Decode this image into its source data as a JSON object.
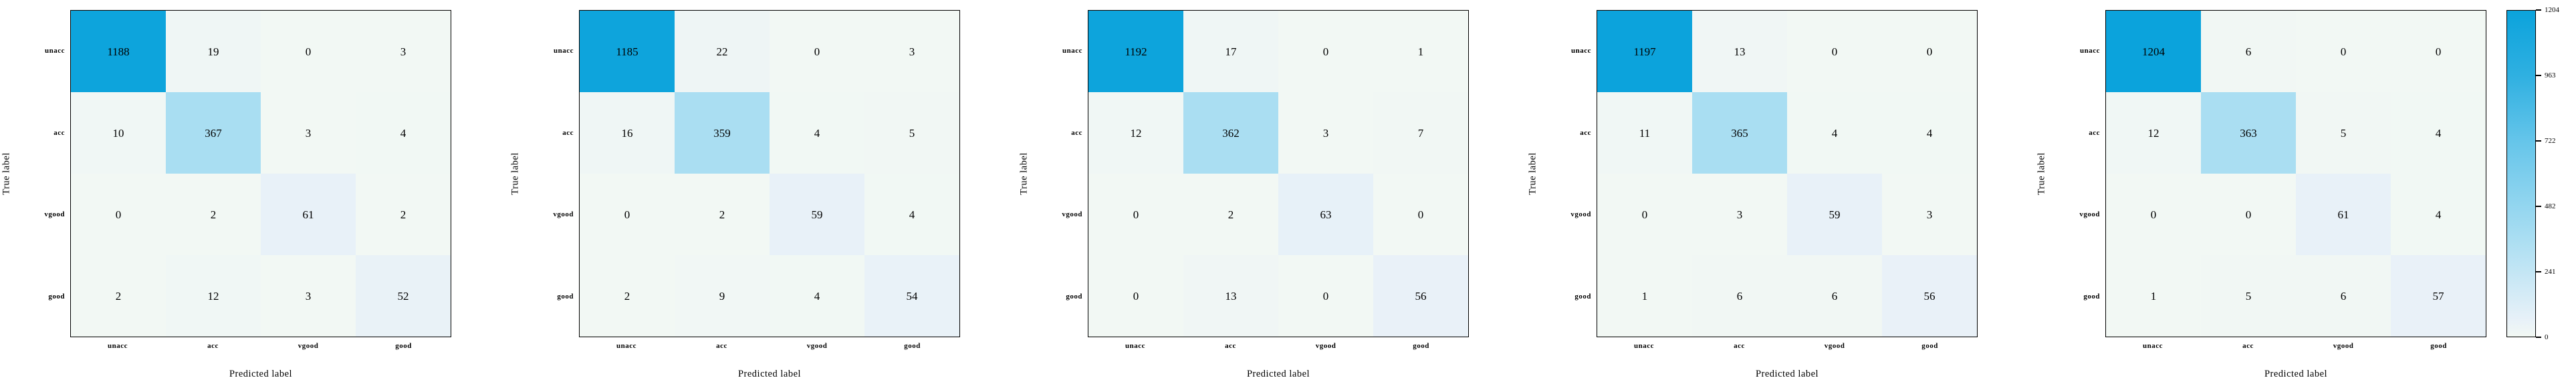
{
  "figure": {
    "xlabel": "Predicted label",
    "ylabel": "True label",
    "classes": [
      "unacc",
      "acc",
      "vgood",
      "good"
    ]
  },
  "chart_data": [
    {
      "type": "heatmap",
      "title": "",
      "x_categories": [
        "unacc",
        "acc",
        "vgood",
        "good"
      ],
      "y_categories": [
        "unacc",
        "acc",
        "vgood",
        "good"
      ],
      "xlabel": "Predicted label",
      "ylabel": "True label",
      "vmin": 0,
      "vmax": 1204,
      "values": [
        [
          1188,
          19,
          0,
          3
        ],
        [
          10,
          367,
          3,
          4
        ],
        [
          0,
          2,
          61,
          2
        ],
        [
          2,
          12,
          3,
          52
        ]
      ]
    },
    {
      "type": "heatmap",
      "title": "",
      "x_categories": [
        "unacc",
        "acc",
        "vgood",
        "good"
      ],
      "y_categories": [
        "unacc",
        "acc",
        "vgood",
        "good"
      ],
      "xlabel": "Predicted label",
      "ylabel": "True label",
      "vmin": 0,
      "vmax": 1204,
      "values": [
        [
          1185,
          22,
          0,
          3
        ],
        [
          16,
          359,
          4,
          5
        ],
        [
          0,
          2,
          59,
          4
        ],
        [
          2,
          9,
          4,
          54
        ]
      ]
    },
    {
      "type": "heatmap",
      "title": "",
      "x_categories": [
        "unacc",
        "acc",
        "vgood",
        "good"
      ],
      "y_categories": [
        "unacc",
        "acc",
        "vgood",
        "good"
      ],
      "xlabel": "Predicted label",
      "ylabel": "True label",
      "vmin": 0,
      "vmax": 1204,
      "values": [
        [
          1192,
          17,
          0,
          1
        ],
        [
          12,
          362,
          3,
          7
        ],
        [
          0,
          2,
          63,
          0
        ],
        [
          0,
          13,
          0,
          56
        ]
      ]
    },
    {
      "type": "heatmap",
      "title": "",
      "x_categories": [
        "unacc",
        "acc",
        "vgood",
        "good"
      ],
      "y_categories": [
        "unacc",
        "acc",
        "vgood",
        "good"
      ],
      "xlabel": "Predicted label",
      "ylabel": "True label",
      "vmin": 0,
      "vmax": 1204,
      "values": [
        [
          1197,
          13,
          0,
          0
        ],
        [
          11,
          365,
          4,
          4
        ],
        [
          0,
          3,
          59,
          3
        ],
        [
          1,
          6,
          6,
          56
        ]
      ]
    },
    {
      "type": "heatmap",
      "title": "",
      "x_categories": [
        "unacc",
        "acc",
        "vgood",
        "good"
      ],
      "y_categories": [
        "unacc",
        "acc",
        "vgood",
        "good"
      ],
      "xlabel": "Predicted label",
      "ylabel": "True label",
      "vmin": 0,
      "vmax": 1204,
      "values": [
        [
          1204,
          6,
          0,
          0
        ],
        [
          12,
          363,
          5,
          4
        ],
        [
          0,
          0,
          61,
          4
        ],
        [
          1,
          5,
          6,
          57
        ]
      ]
    }
  ],
  "colorbar": {
    "vmin": 0,
    "vmax": 1204,
    "ticks": [
      0,
      241,
      482,
      722,
      963,
      1204
    ],
    "position": "right"
  },
  "colors": {
    "cmap_stops": [
      [
        0.0,
        "#f2f8f4"
      ],
      [
        0.05,
        "#e8f1f8"
      ],
      [
        0.3,
        "#aadef2"
      ],
      [
        0.6,
        "#65c5ea"
      ],
      [
        0.8,
        "#2fb0e1"
      ],
      [
        1.0,
        "#0ba3dc"
      ]
    ],
    "cell_text": "#000000",
    "axis_border": "#000000",
    "background": "#ffffff"
  }
}
